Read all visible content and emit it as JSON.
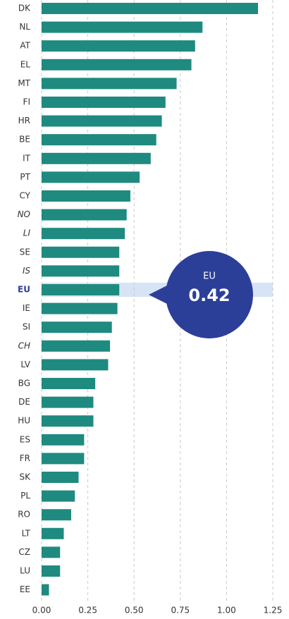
{
  "chart_data": {
    "type": "bar",
    "orientation": "horizontal",
    "categories": [
      "DK",
      "NL",
      "AT",
      "EL",
      "MT",
      "FI",
      "HR",
      "BE",
      "IT",
      "PT",
      "CY",
      "NO",
      "LI",
      "SE",
      "IS",
      "EU",
      "IE",
      "SI",
      "CH",
      "LV",
      "BG",
      "DE",
      "HU",
      "ES",
      "FR",
      "SK",
      "PL",
      "RO",
      "LT",
      "CZ",
      "LU",
      "EE"
    ],
    "values": [
      1.17,
      0.87,
      0.83,
      0.81,
      0.73,
      0.67,
      0.65,
      0.62,
      0.59,
      0.53,
      0.48,
      0.46,
      0.45,
      0.42,
      0.42,
      0.42,
      0.41,
      0.38,
      0.37,
      0.36,
      0.29,
      0.28,
      0.28,
      0.23,
      0.23,
      0.2,
      0.18,
      0.16,
      0.12,
      0.1,
      0.1,
      0.04
    ],
    "color": "#1f8a80",
    "highlight_index": 15,
    "highlight_color": "#2b3f99",
    "italic_indices": [
      11,
      12,
      14,
      18
    ],
    "xlim": [
      0,
      1.25
    ],
    "xticks": [
      {
        "value": 0,
        "label": "0.00"
      },
      0.25,
      {
        "value": 0.5,
        "label": "0.50"
      },
      0.75,
      {
        "value": 1,
        "label": "1.00"
      },
      1.25
    ],
    "grid": true
  }
}
